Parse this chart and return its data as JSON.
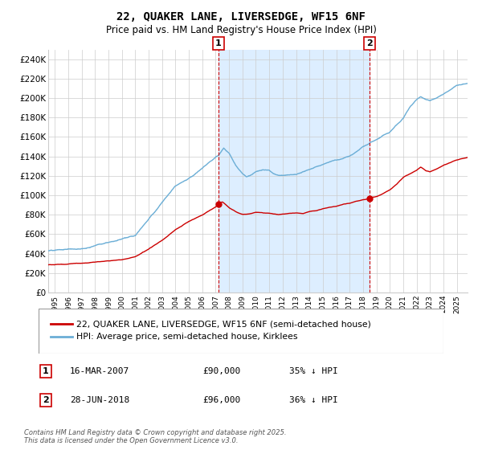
{
  "title": "22, QUAKER LANE, LIVERSEDGE, WF15 6NF",
  "subtitle": "Price paid vs. HM Land Registry's House Price Index (HPI)",
  "hpi_label": "HPI: Average price, semi-detached house, Kirklees",
  "property_label": "22, QUAKER LANE, LIVERSEDGE, WF15 6NF (semi-detached house)",
  "marker1": {
    "date": "16-MAR-2007",
    "price": 90000,
    "label": "1",
    "x_year": 2007.21
  },
  "marker2": {
    "date": "28-JUN-2018",
    "price": 96000,
    "label": "2",
    "x_year": 2018.49
  },
  "annotation1": {
    "date": "16-MAR-2007",
    "price": "£90,000",
    "hpi": "35% ↓ HPI"
  },
  "annotation2": {
    "date": "28-JUN-2018",
    "price": "£96,000",
    "hpi": "36% ↓ HPI"
  },
  "hpi_color": "#6baed6",
  "property_color": "#cc0000",
  "vline_color": "#cc0000",
  "shade_color": "#ddeeff",
  "background_color": "#ffffff",
  "grid_color": "#cccccc",
  "ylim": [
    0,
    250000
  ],
  "xlim_start": 1994.5,
  "xlim_end": 2025.8,
  "footer": "Contains HM Land Registry data © Crown copyright and database right 2025.\nThis data is licensed under the Open Government Licence v3.0."
}
